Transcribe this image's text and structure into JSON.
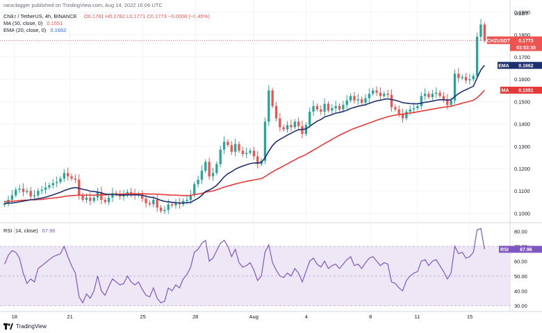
{
  "publisher_line": "ranadagger published on TradingView.com, Aug 14, 2022 16:06 UTC",
  "symbol_line": "Chiliz / TetherUS, 4h, BINANCE",
  "ohlc": {
    "o": "O0.1781",
    "h": "H0.1782",
    "l": "L0.1771",
    "c": "C0.1773",
    "chg": "−0.0008 (−0.45%)"
  },
  "ma_line": {
    "label": "MA (50, close, 0)",
    "value": "0.1551"
  },
  "ema_line": {
    "label": "EMA (20, close, 0)",
    "value": "0.1662"
  },
  "rsi_line": {
    "label": "RSI (14, close)",
    "value": "67.96"
  },
  "footer_brand": "TradingView",
  "colors": {
    "up": "#26a69a",
    "down": "#ef5350",
    "ema": "#1e2f6e",
    "ma": "#e53935",
    "rsi": "#7e57c2",
    "rsi_band": "#ede7f6"
  },
  "chart_data": [
    {
      "type": "candlestick",
      "currency_label": "USDT",
      "x_tick_labels": [
        "18",
        "21",
        "25",
        "28",
        "Aug",
        "4",
        "8",
        "11",
        "15"
      ],
      "y_ticks": [
        "0.1900",
        "0.1800",
        "0.1700",
        "0.1600",
        "0.1500",
        "0.1400",
        "0.1300",
        "0.1200",
        "0.1100",
        "0.1000"
      ],
      "ylim": [
        0.097,
        0.193
      ],
      "price_tag": {
        "label": "CHZUSDT",
        "value": "0.1773",
        "countdown": "03:53:35"
      },
      "ema_tag": {
        "label": "EMA",
        "value": "0.1662"
      },
      "ma_tag": {
        "label": "MA",
        "value": "0.1551"
      },
      "closes": [
        0.1045,
        0.106,
        0.108,
        0.1105,
        0.111,
        0.1095,
        0.11,
        0.1075,
        0.108,
        0.11,
        0.1105,
        0.1115,
        0.1125,
        0.1135,
        0.114,
        0.1155,
        0.118,
        0.1165,
        0.1155,
        0.115,
        0.108,
        0.106,
        0.107,
        0.1055,
        0.107,
        0.1095,
        0.106,
        0.105,
        0.107,
        0.109,
        0.1085,
        0.1075,
        0.108,
        0.1095,
        0.1085,
        0.108,
        0.1085,
        0.1065,
        0.1045,
        0.104,
        0.106,
        0.1025,
        0.101,
        0.1015,
        0.104,
        0.1035,
        0.1045,
        0.104,
        0.1055,
        0.106,
        0.108,
        0.113,
        0.115,
        0.119,
        0.123,
        0.1165,
        0.118,
        0.122,
        0.1285,
        0.132,
        0.1305,
        0.1275,
        0.131,
        0.128,
        0.1265,
        0.127,
        0.128,
        0.1255,
        0.122,
        0.1235,
        0.141,
        0.155,
        0.148,
        0.1425,
        0.1385,
        0.1375,
        0.1395,
        0.1385,
        0.141,
        0.139,
        0.1355,
        0.1395,
        0.1455,
        0.148,
        0.1465,
        0.1455,
        0.149,
        0.146,
        0.147,
        0.148,
        0.1465,
        0.1485,
        0.1505,
        0.1525,
        0.1505,
        0.151,
        0.1495,
        0.1515,
        0.1535,
        0.155,
        0.154,
        0.1525,
        0.1535,
        0.153,
        0.1475,
        0.1465,
        0.1445,
        0.1425,
        0.1455,
        0.1465,
        0.147,
        0.148,
        0.1525,
        0.1535,
        0.152,
        0.1535,
        0.154,
        0.1525,
        0.151,
        0.1485,
        0.1505,
        0.1625,
        0.1605,
        0.161,
        0.1595,
        0.16,
        0.1615,
        0.179,
        0.1845,
        0.1773
      ],
      "ema20": [
        0.1045,
        0.1045,
        0.1046,
        0.1048,
        0.1051,
        0.1054,
        0.1057,
        0.106,
        0.1062,
        0.1065,
        0.1068,
        0.1072,
        0.1077,
        0.1082,
        0.1088,
        0.1094,
        0.1101,
        0.1107,
        0.1112,
        0.1115,
        0.1112,
        0.1107,
        0.1104,
        0.1099,
        0.1097,
        0.1095,
        0.1091,
        0.1086,
        0.1085,
        0.1084,
        0.1083,
        0.1082,
        0.1081,
        0.1082,
        0.1082,
        0.1082,
        0.1082,
        0.108,
        0.1076,
        0.1072,
        0.107,
        0.1064,
        0.1058,
        0.1053,
        0.1051,
        0.1049,
        0.1047,
        0.1046,
        0.1046,
        0.1047,
        0.1049,
        0.1058,
        0.1067,
        0.108,
        0.1097,
        0.1104,
        0.1113,
        0.1125,
        0.1143,
        0.1163,
        0.1177,
        0.1186,
        0.1197,
        0.1205,
        0.1211,
        0.1217,
        0.1222,
        0.1225,
        0.1225,
        0.1227,
        0.1248,
        0.1278,
        0.1303,
        0.132,
        0.1331,
        0.134,
        0.135,
        0.1358,
        0.1367,
        0.1374,
        0.1375,
        0.1377,
        0.1389,
        0.1401,
        0.1412,
        0.142,
        0.1431,
        0.1436,
        0.1442,
        0.1448,
        0.1451,
        0.1456,
        0.1461,
        0.1469,
        0.1474,
        0.1479,
        0.1482,
        0.1486,
        0.1492,
        0.1498,
        0.1503,
        0.1506,
        0.151,
        0.1512,
        0.1509,
        0.1506,
        0.1501,
        0.1495,
        0.1493,
        0.1491,
        0.149,
        0.149,
        0.1493,
        0.1497,
        0.1499,
        0.1502,
        0.1506,
        0.1508,
        0.1508,
        0.1507,
        0.1508,
        0.1523,
        0.1535,
        0.1545,
        0.1553,
        0.1561,
        0.1569,
        0.1606,
        0.1642,
        0.1662
      ],
      "ma50": [
        0.1052,
        0.1053,
        0.1054,
        0.1055,
        0.1057,
        0.1058,
        0.1059,
        0.106,
        0.106,
        0.1061,
        0.1062,
        0.1064,
        0.1066,
        0.1068,
        0.107,
        0.1072,
        0.1075,
        0.1077,
        0.1079,
        0.108,
        0.1081,
        0.1081,
        0.1081,
        0.1081,
        0.1081,
        0.1082,
        0.1082,
        0.1082,
        0.1083,
        0.1084,
        0.1085,
        0.1085,
        0.1086,
        0.1087,
        0.1087,
        0.1087,
        0.1087,
        0.1087,
        0.1087,
        0.1086,
        0.1086,
        0.1085,
        0.1084,
        0.1083,
        0.1082,
        0.1081,
        0.1081,
        0.108,
        0.1079,
        0.1079,
        0.108,
        0.1083,
        0.1086,
        0.1089,
        0.1094,
        0.1097,
        0.11,
        0.1105,
        0.1111,
        0.1117,
        0.1122,
        0.1126,
        0.1131,
        0.1135,
        0.1139,
        0.1143,
        0.1146,
        0.1149,
        0.1152,
        0.1155,
        0.1164,
        0.1175,
        0.1185,
        0.1195,
        0.1203,
        0.1212,
        0.1221,
        0.123,
        0.1239,
        0.1248,
        0.1255,
        0.1263,
        0.1273,
        0.1283,
        0.1292,
        0.1302,
        0.1312,
        0.1321,
        0.1331,
        0.134,
        0.1349,
        0.1357,
        0.1365,
        0.1373,
        0.138,
        0.1386,
        0.1392,
        0.1398,
        0.1404,
        0.141,
        0.1416,
        0.1422,
        0.1427,
        0.1432,
        0.1436,
        0.1439,
        0.1442,
        0.1444,
        0.1446,
        0.1449,
        0.1451,
        0.1454,
        0.1457,
        0.146,
        0.1463,
        0.1466,
        0.1469,
        0.1472,
        0.1475,
        0.1477,
        0.1479,
        0.1484,
        0.1488,
        0.1493,
        0.1497,
        0.1501,
        0.1506,
        0.1517,
        0.1533,
        0.1551
      ]
    },
    {
      "type": "line",
      "name": "RSI (14, close)",
      "y_ticks": [
        "80.00",
        "70.00",
        "60.00",
        "50.00",
        "40.00",
        "30.00"
      ],
      "ylim": [
        28,
        84
      ],
      "band": [
        30,
        70
      ],
      "last_tag": {
        "label": "RSI",
        "value": "67.96"
      },
      "values": [
        58,
        64,
        67,
        66,
        62,
        52,
        45,
        48,
        46,
        55,
        57,
        59,
        61,
        63,
        64,
        65,
        70,
        63,
        57,
        52,
        36,
        32,
        38,
        35,
        40,
        50,
        40,
        37,
        43,
        48,
        46,
        44,
        45,
        50,
        46,
        44,
        46,
        41,
        37,
        36,
        42,
        35,
        32,
        33,
        42,
        40,
        44,
        42,
        48,
        51,
        56,
        66,
        68,
        72,
        74,
        60,
        62,
        67,
        72,
        74,
        70,
        63,
        68,
        59,
        56,
        57,
        59,
        54,
        47,
        50,
        66,
        71,
        59,
        54,
        50,
        49,
        52,
        50,
        55,
        52,
        46,
        53,
        60,
        62,
        58,
        56,
        60,
        55,
        57,
        58,
        55,
        58,
        61,
        63,
        57,
        58,
        55,
        59,
        62,
        63,
        60,
        57,
        59,
        58,
        46,
        45,
        42,
        40,
        47,
        50,
        52,
        53,
        60,
        61,
        57,
        60,
        61,
        57,
        53,
        48,
        52,
        70,
        65,
        66,
        62,
        63,
        66,
        81,
        82,
        67.96
      ]
    }
  ]
}
